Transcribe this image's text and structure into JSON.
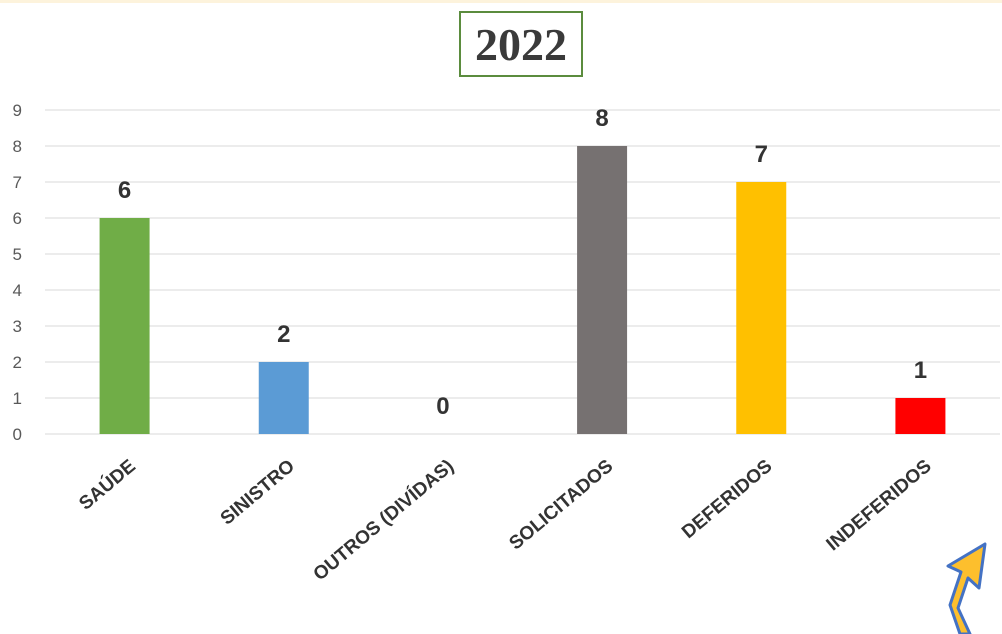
{
  "colors": {
    "top_strip": "#fdf3dc",
    "title_border": "#5b8c3e",
    "gridline": "#d9d9d9",
    "arrow_fill": "#fdbf2d",
    "arrow_stroke": "#4472c4"
  },
  "decor": {
    "corner_arrow": "arrow-icon"
  },
  "chart_data": {
    "type": "bar",
    "title": "2022",
    "xlabel": "",
    "ylabel": "",
    "categories": [
      "SAÚDE",
      "SINISTRO",
      "OUTROS (DIVÍDAS)",
      "SOLICITADOS",
      "DEFERIDOS",
      "INDEFERIDOS"
    ],
    "values": [
      6,
      2,
      0,
      8,
      7,
      1
    ],
    "data_labels": [
      "6",
      "2",
      "0",
      "8",
      "7",
      "1"
    ],
    "bar_colors": [
      "#70ad47",
      "#5b9bd5",
      "#a5a5a5",
      "#767171",
      "#ffc000",
      "#ff0000"
    ],
    "ylim": [
      0,
      9
    ],
    "yticks": [
      "0",
      "1",
      "2",
      "3",
      "4",
      "5",
      "6",
      "7",
      "8",
      "9"
    ],
    "grid": true,
    "legend": "none"
  }
}
